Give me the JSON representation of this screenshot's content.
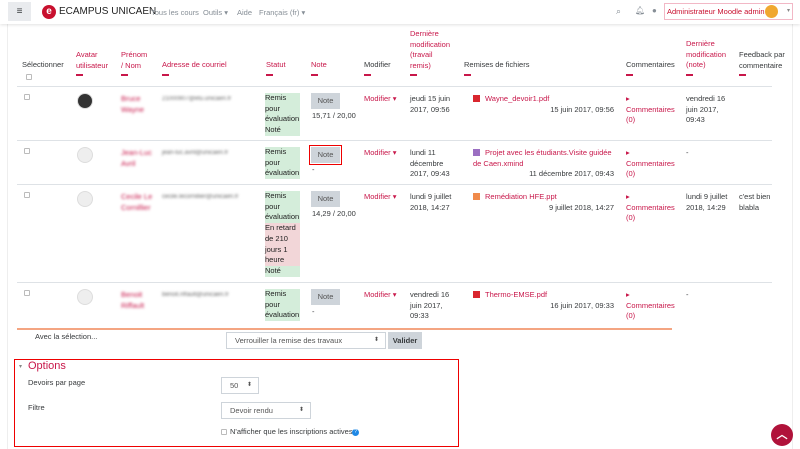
{
  "navbar": {
    "brand": "ECAMPUS UNICAEN",
    "links": [
      "Tous les cours",
      "Outils",
      "Aide",
      "Français (fr)"
    ],
    "user": "Administrateur Moodle admin",
    "accent": "#c8102e"
  },
  "headers": {
    "select": "Sélectionner",
    "avatar": [
      "Avatar",
      "utilisateur"
    ],
    "name": [
      "Prénom",
      "/ Nom"
    ],
    "email": "Adresse de courriel",
    "status": "Statut",
    "grade": "Note",
    "edit": "Modifier",
    "lastmod": [
      "Dernière",
      "modification",
      "(travail",
      "remis)"
    ],
    "files": "Remises de fichiers",
    "comments": "Commentaires",
    "lastgrade": [
      "Dernière",
      "modification",
      "(note)"
    ],
    "feedback": [
      "Feedback par",
      "commentaire"
    ]
  },
  "rows": [
    {
      "name": [
        "Bruce",
        "Wayne"
      ],
      "email": "21000907@etu.unicaen.fr",
      "status_ok": [
        "Remis",
        "pour",
        "évaluation"
      ],
      "status_late": [],
      "status_end": "Noté",
      "note": "Note",
      "grade": "15,71 / 20,00",
      "edit": "Modifier",
      "lastmod": [
        "jeudi 15 juin",
        "2017, 09:56"
      ],
      "file": "Wayne_devoir1.pdf",
      "filetype": "pdf",
      "filedate": "15 juin 2017, 09:56",
      "comments": [
        "Commentaires",
        "(0)"
      ],
      "lastgrade": [
        "vendredi 16",
        "juin 2017,",
        "09:43"
      ],
      "feedback": []
    },
    {
      "name": [
        "Jean-Luc",
        "Avril"
      ],
      "email": "jean-luc.avril@unicaen.fr",
      "status_ok": [
        "Remis",
        "pour",
        "évaluation"
      ],
      "status_late": [],
      "status_end": "",
      "note": "Note",
      "grade": "-",
      "edit": "Modifier",
      "lastmod": [
        "lundi 11",
        "décembre",
        "2017, 09:43"
      ],
      "file": "Projet avec les étudiants.Visite guidée de Caen.xmind",
      "filetype": "xmind",
      "filedate": "11 décembre 2017, 09:43",
      "comments": [
        "Commentaires",
        "(0)"
      ],
      "lastgrade": [
        "-"
      ],
      "feedback": []
    },
    {
      "name": [
        "Cecile Le",
        "Cornillier"
      ],
      "email": "cecile.lecornillier@unicaen.fr",
      "status_ok": [
        "Remis",
        "pour",
        "évaluation"
      ],
      "status_late": [
        "En retard",
        "de 210",
        "jours 1",
        "heure"
      ],
      "status_end": "Noté",
      "note": "Note",
      "grade": "14,29 / 20,00",
      "edit": "Modifier",
      "lastmod": [
        "lundi 9 juillet",
        "2018, 14:27"
      ],
      "file": "Remédiation HFE.ppt",
      "filetype": "ppt",
      "filedate": "9 juillet 2018, 14:27",
      "comments": [
        "Commentaires",
        "(0)"
      ],
      "lastgrade": [
        "lundi 9 juillet",
        "2018, 14:29"
      ],
      "feedback": [
        "c'est bien",
        "blabla"
      ]
    },
    {
      "name": [
        "Benoit",
        "Riffault"
      ],
      "email": "benoit.riffault@unicaen.fr",
      "status_ok": [
        "Remis",
        "pour",
        "évaluation"
      ],
      "status_late": [],
      "status_end": "",
      "note": "Note",
      "grade": "-",
      "edit": "Modifier",
      "lastmod": [
        "vendredi 16",
        "juin 2017,",
        "09:33"
      ],
      "file": "Thermo-EMSE.pdf",
      "filetype": "pdf",
      "filedate": "16 juin 2017, 09:33",
      "comments": [
        "Commentaires",
        "(0)"
      ],
      "lastgrade": [
        "-"
      ],
      "feedback": []
    }
  ],
  "bulk": {
    "label": "Avec la sélection...",
    "action": "Verrouiller la remise des travaux",
    "submit": "Valider"
  },
  "options": {
    "title": "Options",
    "per_page_label": "Devoirs par page",
    "per_page": "50",
    "filter_label": "Filtre",
    "filter": "Devoir rendu",
    "active_only": "N'afficher que les inscriptions actives"
  }
}
